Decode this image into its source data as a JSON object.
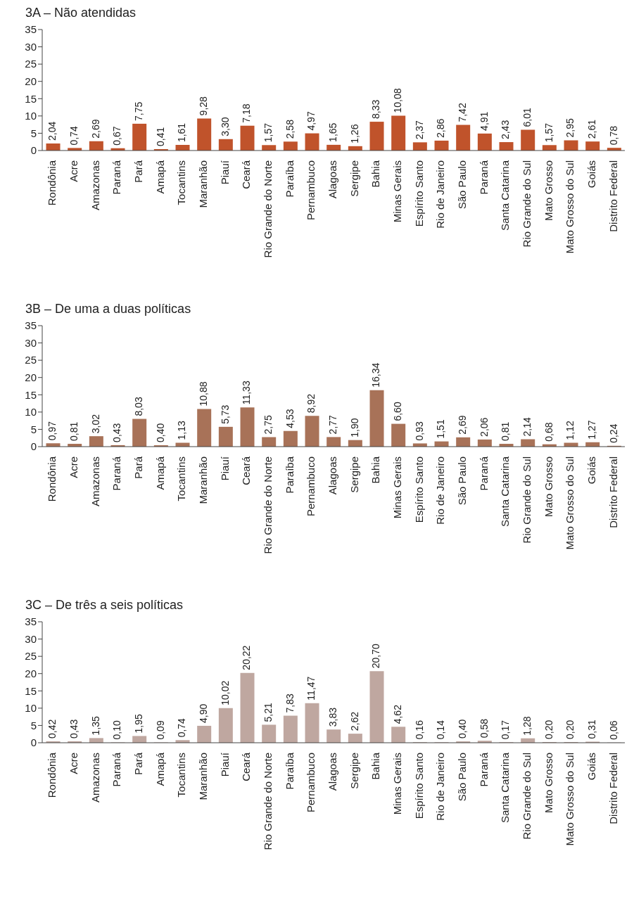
{
  "chart_data": [
    {
      "type": "bar",
      "title": "3A – Não atendidas",
      "categories": [
        "Rondônia",
        "Acre",
        "Amazonas",
        "Paraná",
        "Pará",
        "Amapá",
        "Tocantins",
        "Maranhão",
        "Piauí",
        "Ceará",
        "Rio Grande do Norte",
        "Paraíba",
        "Pernambuco",
        "Alagoas",
        "Sergipe",
        "Bahia",
        "Minas Gerais",
        "Espírito Santo",
        "Rio de Janeiro",
        "São Paulo",
        "Paraná",
        "Santa Catarina",
        "Rio Grande do Sul",
        "Mato Grosso",
        "Mato Grosso do Sul",
        "Goiás",
        "Distrito Federal"
      ],
      "values": [
        2.04,
        0.74,
        2.69,
        0.67,
        7.75,
        0.41,
        1.61,
        9.28,
        3.3,
        7.18,
        1.57,
        2.58,
        4.97,
        1.65,
        1.26,
        8.33,
        10.08,
        2.37,
        2.86,
        7.42,
        4.91,
        2.43,
        6.01,
        1.57,
        2.95,
        2.61,
        0.78
      ],
      "value_labels": [
        "2,04",
        "0,74",
        "2,69",
        "0,67",
        "7,75",
        "0,41",
        "1,61",
        "9,28",
        "3,30",
        "7,18",
        "1,57",
        "2,58",
        "4,97",
        "1,65",
        "1,26",
        "8,33",
        "10,08",
        "2,37",
        "2,86",
        "7,42",
        "4,91",
        "2,43",
        "6,01",
        "1,57",
        "2,95",
        "2,61",
        "0,78"
      ],
      "color": "#c0532b",
      "ylim": [
        0,
        35
      ],
      "yticks": [
        0,
        5,
        10,
        15,
        20,
        25,
        30,
        35
      ],
      "grid": false,
      "legend": false
    },
    {
      "type": "bar",
      "title": "3B – De uma a duas políticas",
      "categories": [
        "Rondônia",
        "Acre",
        "Amazonas",
        "Paraná",
        "Pará",
        "Amapá",
        "Tocantins",
        "Maranhão",
        "Piauí",
        "Ceará",
        "Rio Grande do Norte",
        "Paraíba",
        "Pernambuco",
        "Alagoas",
        "Sergipe",
        "Bahia",
        "Minas Gerais",
        "Espírito Santo",
        "Rio de Janeiro",
        "São Paulo",
        "Paraná",
        "Santa Catarina",
        "Rio Grande do Sul",
        "Mato Grosso",
        "Mato Grosso do Sul",
        "Goiás",
        "Distrito Federal"
      ],
      "values": [
        0.97,
        0.81,
        3.02,
        0.43,
        8.03,
        0.4,
        1.13,
        10.88,
        5.73,
        11.33,
        2.75,
        4.53,
        8.92,
        2.77,
        1.9,
        16.34,
        6.6,
        0.93,
        1.51,
        2.69,
        2.06,
        0.81,
        2.14,
        0.68,
        1.12,
        1.27,
        0.24
      ],
      "value_labels": [
        "0,97",
        "0,81",
        "3,02",
        "0,43",
        "8,03",
        "0,40",
        "1,13",
        "10,88",
        "5,73",
        "11,33",
        "2,75",
        "4,53",
        "8,92",
        "2,77",
        "1,90",
        "16,34",
        "6,60",
        "0,93",
        "1,51",
        "2,69",
        "2,06",
        "0,81",
        "2,14",
        "0,68",
        "1,12",
        "1,27",
        "0,24"
      ],
      "color": "#a87258",
      "ylim": [
        0,
        35
      ],
      "yticks": [
        0,
        5,
        10,
        15,
        20,
        25,
        30,
        35
      ],
      "grid": false,
      "legend": false
    },
    {
      "type": "bar",
      "title": "3C – De três a seis políticas",
      "categories": [
        "Rondônia",
        "Acre",
        "Amazonas",
        "Paraná",
        "Pará",
        "Amapá",
        "Tocantins",
        "Maranhão",
        "Piauí",
        "Ceará",
        "Rio Grande do Norte",
        "Paraíba",
        "Pernambuco",
        "Alagoas",
        "Sergipe",
        "Bahia",
        "Minas Gerais",
        "Espírito Santo",
        "Rio de Janeiro",
        "São Paulo",
        "Paraná",
        "Santa Catarina",
        "Rio Grande do Sul",
        "Mato Grosso",
        "Mato Grosso do Sul",
        "Goiás",
        "Distrito Federal"
      ],
      "values": [
        0.42,
        0.43,
        1.35,
        0.1,
        1.95,
        0.09,
        0.74,
        4.9,
        10.02,
        20.22,
        5.21,
        7.83,
        11.47,
        3.83,
        2.62,
        20.7,
        4.62,
        0.16,
        0.14,
        0.4,
        0.58,
        0.17,
        1.28,
        0.2,
        0.2,
        0.31,
        0.06
      ],
      "value_labels": [
        "0,42",
        "0,43",
        "1,35",
        "0,10",
        "1,95",
        "0,09",
        "0,74",
        "4,90",
        "10,02",
        "20,22",
        "5,21",
        "7,83",
        "11,47",
        "3,83",
        "2,62",
        "20,70",
        "4,62",
        "0,16",
        "0,14",
        "0,40",
        "0,58",
        "0,17",
        "1,28",
        "0,20",
        "0,20",
        "0,31",
        "0,06"
      ],
      "color": "#bfa7a0",
      "ylim": [
        0,
        35
      ],
      "yticks": [
        0,
        5,
        10,
        15,
        20,
        25,
        30,
        35
      ],
      "grid": false,
      "legend": false
    }
  ]
}
